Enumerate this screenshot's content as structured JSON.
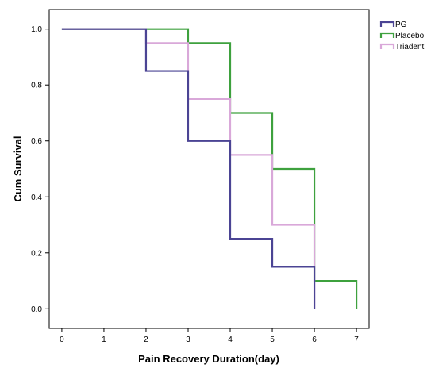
{
  "chart_data": {
    "type": "line",
    "step": true,
    "title": "",
    "xlabel": "Pain Recovery Duration(day)",
    "ylabel": "Cum Survival",
    "xlim": [
      -0.3,
      7.3
    ],
    "ylim": [
      -0.07,
      1.07
    ],
    "xticks": [
      0,
      1,
      2,
      3,
      4,
      5,
      6,
      7
    ],
    "xtick_labels": [
      "0",
      "1",
      "2",
      "3",
      "4",
      "5",
      "6",
      "7"
    ],
    "yticks": [
      0.0,
      0.2,
      0.4,
      0.6,
      0.8,
      1.0
    ],
    "ytick_labels": [
      "0.0",
      "0.2",
      "0.4",
      "0.6",
      "0.8",
      "1.0"
    ],
    "grid": false,
    "legend_position": "top-right",
    "series": [
      {
        "name": "PG",
        "color": "#4b4494",
        "x": [
          0,
          2,
          3,
          4,
          5,
          6,
          6
        ],
        "y": [
          1.0,
          0.85,
          0.6,
          0.25,
          0.15,
          0.15,
          0.0
        ]
      },
      {
        "name": "Placebo",
        "color": "#3ea13e",
        "x": [
          0,
          3,
          4,
          5,
          6,
          7,
          7
        ],
        "y": [
          1.0,
          0.95,
          0.7,
          0.5,
          0.1,
          0.1,
          0.0
        ]
      },
      {
        "name": "Triadent",
        "color": "#d9a8d9",
        "x": [
          0,
          2,
          3,
          4,
          5,
          6,
          6
        ],
        "y": [
          1.0,
          0.95,
          0.75,
          0.55,
          0.3,
          0.3,
          0.0
        ]
      }
    ]
  }
}
